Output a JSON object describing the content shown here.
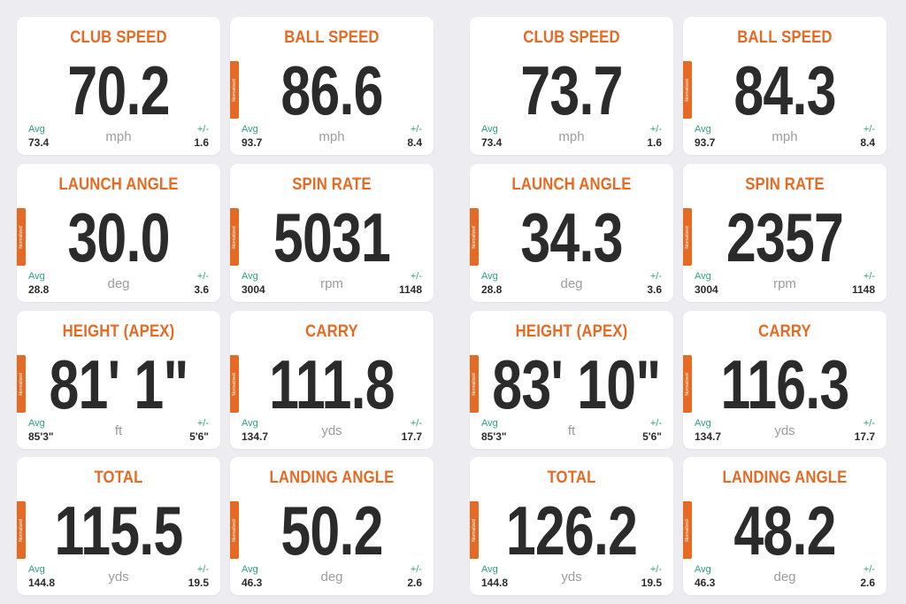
{
  "colors": {
    "accent": "#e56a23",
    "avg_label": "#2aa37f",
    "value": "#2b2b2b",
    "unit": "#9c9c9c",
    "background": "#ececf1"
  },
  "labels": {
    "avg": "Avg",
    "plusminus": "+/-",
    "normalized": "Normalized"
  },
  "panels": [
    {
      "cards": [
        {
          "title": "CLUB SPEED",
          "value": "70.2",
          "unit": "mph",
          "avg": "73.4",
          "plusminus": "1.6",
          "normalized": false
        },
        {
          "title": "BALL SPEED",
          "value": "86.6",
          "unit": "mph",
          "avg": "93.7",
          "plusminus": "8.4",
          "normalized": true
        },
        {
          "title": "LAUNCH ANGLE",
          "value": "30.0",
          "unit": "deg",
          "avg": "28.8",
          "plusminus": "3.6",
          "normalized": true
        },
        {
          "title": "SPIN RATE",
          "value": "5031",
          "unit": "rpm",
          "avg": "3004",
          "plusminus": "1148",
          "normalized": true
        },
        {
          "title": "HEIGHT (APEX)",
          "value": "81' 1\"",
          "unit": "ft",
          "avg": "85'3\"",
          "plusminus": "5'6\"",
          "normalized": true
        },
        {
          "title": "CARRY",
          "value": "111.8",
          "unit": "yds",
          "avg": "134.7",
          "plusminus": "17.7",
          "normalized": true
        },
        {
          "title": "TOTAL",
          "value": "115.5",
          "unit": "yds",
          "avg": "144.8",
          "plusminus": "19.5",
          "normalized": true
        },
        {
          "title": "LANDING ANGLE",
          "value": "50.2",
          "unit": "deg",
          "avg": "46.3",
          "plusminus": "2.6",
          "normalized": true
        }
      ]
    },
    {
      "cards": [
        {
          "title": "CLUB SPEED",
          "value": "73.7",
          "unit": "mph",
          "avg": "73.4",
          "plusminus": "1.6",
          "normalized": false
        },
        {
          "title": "BALL SPEED",
          "value": "84.3",
          "unit": "mph",
          "avg": "93.7",
          "plusminus": "8.4",
          "normalized": true
        },
        {
          "title": "LAUNCH ANGLE",
          "value": "34.3",
          "unit": "deg",
          "avg": "28.8",
          "plusminus": "3.6",
          "normalized": true
        },
        {
          "title": "SPIN RATE",
          "value": "2357",
          "unit": "rpm",
          "avg": "3004",
          "plusminus": "1148",
          "normalized": true
        },
        {
          "title": "HEIGHT (APEX)",
          "value": "83' 10\"",
          "unit": "ft",
          "avg": "85'3\"",
          "plusminus": "5'6\"",
          "normalized": true
        },
        {
          "title": "CARRY",
          "value": "116.3",
          "unit": "yds",
          "avg": "134.7",
          "plusminus": "17.7",
          "normalized": true
        },
        {
          "title": "TOTAL",
          "value": "126.2",
          "unit": "yds",
          "avg": "144.8",
          "plusminus": "19.5",
          "normalized": true
        },
        {
          "title": "LANDING ANGLE",
          "value": "48.2",
          "unit": "deg",
          "avg": "46.3",
          "plusminus": "2.6",
          "normalized": true
        }
      ]
    }
  ]
}
